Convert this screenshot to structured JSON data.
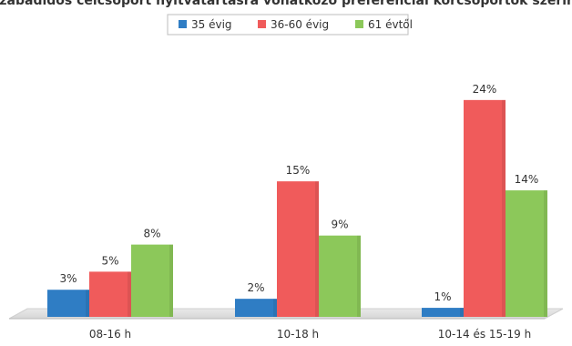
{
  "chart_data": {
    "type": "bar",
    "title": "Szabadidős célcsoport nyitvatartásra vonatkozó preferenciái korcsoportok szerint",
    "categories": [
      "08-16 h",
      "10-18 h",
      "10-14 és 15-19 h"
    ],
    "series": [
      {
        "name": "35 évig",
        "values": [
          3,
          2,
          1
        ],
        "color": "#2f7dc4"
      },
      {
        "name": "36-60 évig",
        "values": [
          5,
          15,
          24
        ],
        "color": "#f05b5b"
      },
      {
        "name": "61 évtől",
        "values": [
          8,
          9,
          14
        ],
        "color": "#8cc85a"
      }
    ],
    "value_suffix": "%",
    "ylim": [
      0,
      26
    ],
    "grid": false,
    "legend_position": "top-center",
    "xlabel": "",
    "ylabel": ""
  }
}
